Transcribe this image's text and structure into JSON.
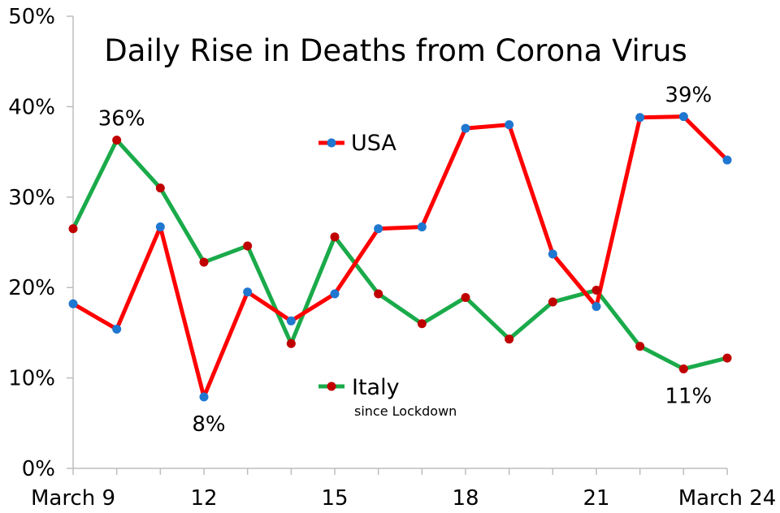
{
  "chart_data": {
    "type": "line",
    "title": "Daily Rise in Deaths from Corona Virus",
    "xlabel": "",
    "ylabel": "",
    "x": [
      9,
      10,
      11,
      12,
      13,
      14,
      15,
      16,
      17,
      18,
      19,
      20,
      21,
      22,
      23,
      24
    ],
    "x_tick_labels": [
      {
        "x": 9,
        "label": "March 9"
      },
      {
        "x": 12,
        "label": "12"
      },
      {
        "x": 15,
        "label": "15"
      },
      {
        "x": 18,
        "label": "18"
      },
      {
        "x": 21,
        "label": "21"
      },
      {
        "x": 24,
        "label": "March 24"
      }
    ],
    "y_tick_labels": [
      "0%",
      "10%",
      "20%",
      "30%",
      "40%",
      "50%"
    ],
    "y_ticks": [
      0,
      10,
      20,
      30,
      40,
      50
    ],
    "ylim": [
      0,
      50
    ],
    "xlim": [
      9,
      24
    ],
    "grid": false,
    "series": [
      {
        "name": "USA",
        "line_color": "#ff0000",
        "marker_color": "#1f77d0",
        "values": [
          18.2,
          15.4,
          26.7,
          7.9,
          19.5,
          16.3,
          19.3,
          26.5,
          26.7,
          37.6,
          38.0,
          23.7,
          17.9,
          38.8,
          38.9,
          34.1
        ]
      },
      {
        "name": "Italy",
        "subtitle": "since Lockdown",
        "line_color": "#1aaa4a",
        "marker_color": "#c00000",
        "values": [
          26.5,
          36.3,
          31.0,
          22.8,
          24.6,
          13.8,
          25.6,
          19.3,
          16.0,
          18.9,
          14.3,
          18.4,
          19.7,
          13.5,
          11.0,
          12.2
        ]
      }
    ],
    "annotations": [
      {
        "text": "36%",
        "series": "Italy",
        "x": 10,
        "position": "above"
      },
      {
        "text": "8%",
        "series": "USA",
        "x": 12,
        "position": "below"
      },
      {
        "text": "39%",
        "series": "USA",
        "x": 23,
        "position": "above"
      },
      {
        "text": "11%",
        "series": "Italy",
        "x": 23,
        "position": "below"
      }
    ],
    "legend": [
      {
        "series": "USA",
        "label": "USA",
        "placement": "center-top"
      },
      {
        "series": "Italy",
        "label": "Italy",
        "sublabel": "since Lockdown",
        "placement": "center-bottom"
      }
    ]
  }
}
